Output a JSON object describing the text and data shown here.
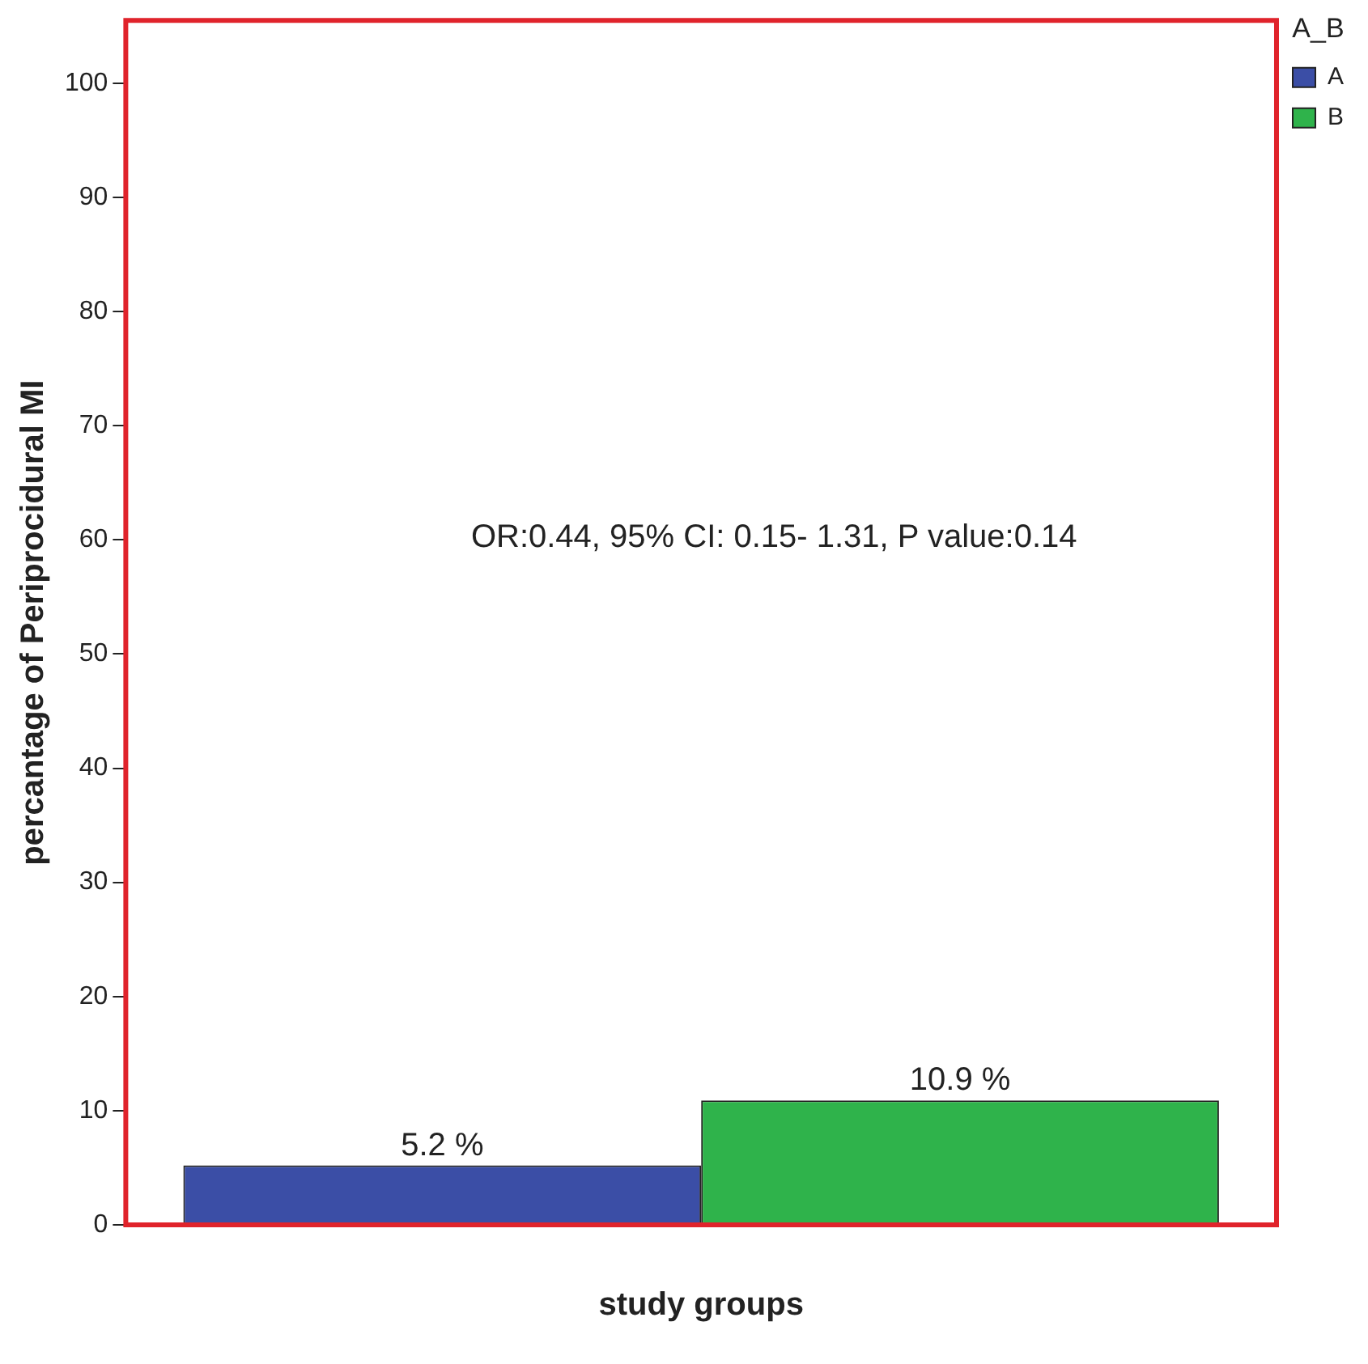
{
  "chart_data": {
    "type": "bar",
    "xlabel": "study groups",
    "ylabel": "percantage of Periprocidural MI",
    "legend_title": "A_B",
    "categories": [
      null
    ],
    "series": [
      {
        "name": "A",
        "color": "#3b4ea6",
        "values": [
          5.2
        ],
        "value_labels": [
          "5.2 %"
        ]
      },
      {
        "name": "B",
        "color": "#2fb34b",
        "values": [
          10.9
        ],
        "value_labels": [
          "10.9 %"
        ]
      }
    ],
    "ylim": [
      0,
      105.5
    ],
    "yticks": [
      0,
      10,
      20,
      30,
      40,
      50,
      60,
      70,
      80,
      90,
      100
    ],
    "grid": false,
    "legend": "top right",
    "tick_labels": "y",
    "annotations": [
      "OR:0.44, 95% CI: 0.15- 1.31, P value:0.14"
    ]
  }
}
